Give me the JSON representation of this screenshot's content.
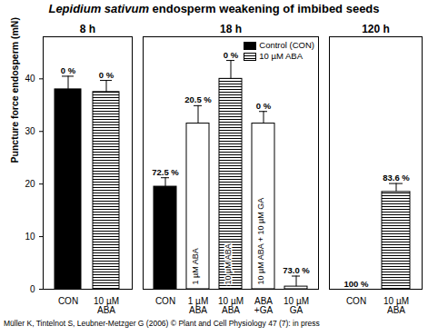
{
  "chart_data": {
    "type": "bar",
    "title": "Lepidium sativum endosperm weakening of imbibed seeds",
    "ylabel": "Puncture force endosperm (mN)",
    "caption": "Müller K, Tintelnot S, Leubner-Metzger G (2006) © Plant and Cell Physiology 47 (7): in press",
    "ylim": [
      0,
      48
    ],
    "yticks": [
      0,
      10,
      20,
      30,
      40
    ],
    "series": [
      {
        "name": "Control (CON)",
        "color": "#000000"
      },
      {
        "name": "10 µM ABA",
        "color": "#000000",
        "line_style": "striped"
      }
    ],
    "panels": [
      {
        "title": "8 h",
        "categories": [
          "CON",
          "10 µM\nABA"
        ],
        "values": [
          38,
          37.5
        ],
        "errors": [
          2.5,
          2.2
        ],
        "bar_labels": [
          "0 %",
          "0 %"
        ],
        "inner_labels": [
          null,
          null
        ],
        "bar_series": [
          "Control (CON)",
          "10 µM ABA"
        ]
      },
      {
        "title": "18 h",
        "legend": "top-right",
        "categories": [
          "CON",
          "1 µM\nABA",
          "10 µM\nABA",
          "ABA\n+GA",
          "10 µM\nGA"
        ],
        "values": [
          19.5,
          31.5,
          40,
          31.5,
          0.5
        ],
        "errors": [
          1.7,
          3.4,
          3.5,
          2.3,
          2
        ],
        "bar_labels": [
          "72.5 %",
          "20.5 %",
          "0 %",
          "0 %",
          "73.0 %"
        ],
        "inner_labels": [
          null,
          "1 µM ABA",
          "10 µM ABA",
          "10 µM ABA + 10 µM GA",
          null
        ],
        "bar_series": [
          "Control (CON)",
          null,
          "10 µM ABA",
          null,
          null
        ]
      },
      {
        "title": "120 h",
        "categories": [
          "CON",
          "10 µM\nABA"
        ],
        "values": [
          0,
          18.5
        ],
        "errors": [
          null,
          1.6
        ],
        "bar_labels": [
          "100 %",
          "83.6 %"
        ],
        "inner_labels": [
          null,
          null
        ],
        "bar_series": [
          "Control (CON)",
          "10 µM ABA"
        ]
      }
    ]
  }
}
